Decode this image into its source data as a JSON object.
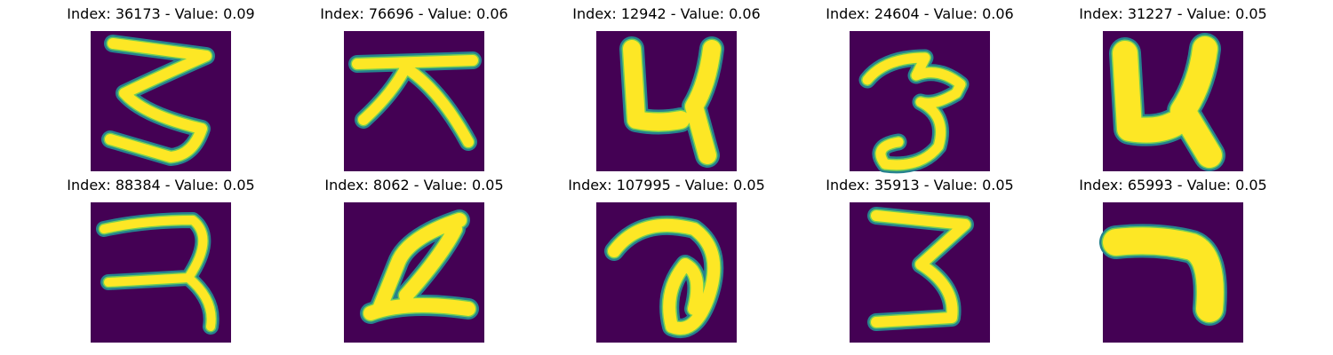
{
  "panels": [
    {
      "title": "Index: 36173 - Value: 0.09"
    },
    {
      "title": "Index: 76696 - Value: 0.06"
    },
    {
      "title": "Index: 12942 - Value: 0.06"
    },
    {
      "title": "Index: 24604 - Value: 0.06"
    },
    {
      "title": "Index: 31227 - Value: 0.05"
    },
    {
      "title": "Index: 88384 - Value: 0.05"
    },
    {
      "title": "Index: 8062 - Value: 0.05"
    },
    {
      "title": "Index: 107995 - Value: 0.05"
    },
    {
      "title": "Index: 35913 - Value: 0.05"
    },
    {
      "title": "Index: 65993 - Value: 0.05"
    }
  ]
}
